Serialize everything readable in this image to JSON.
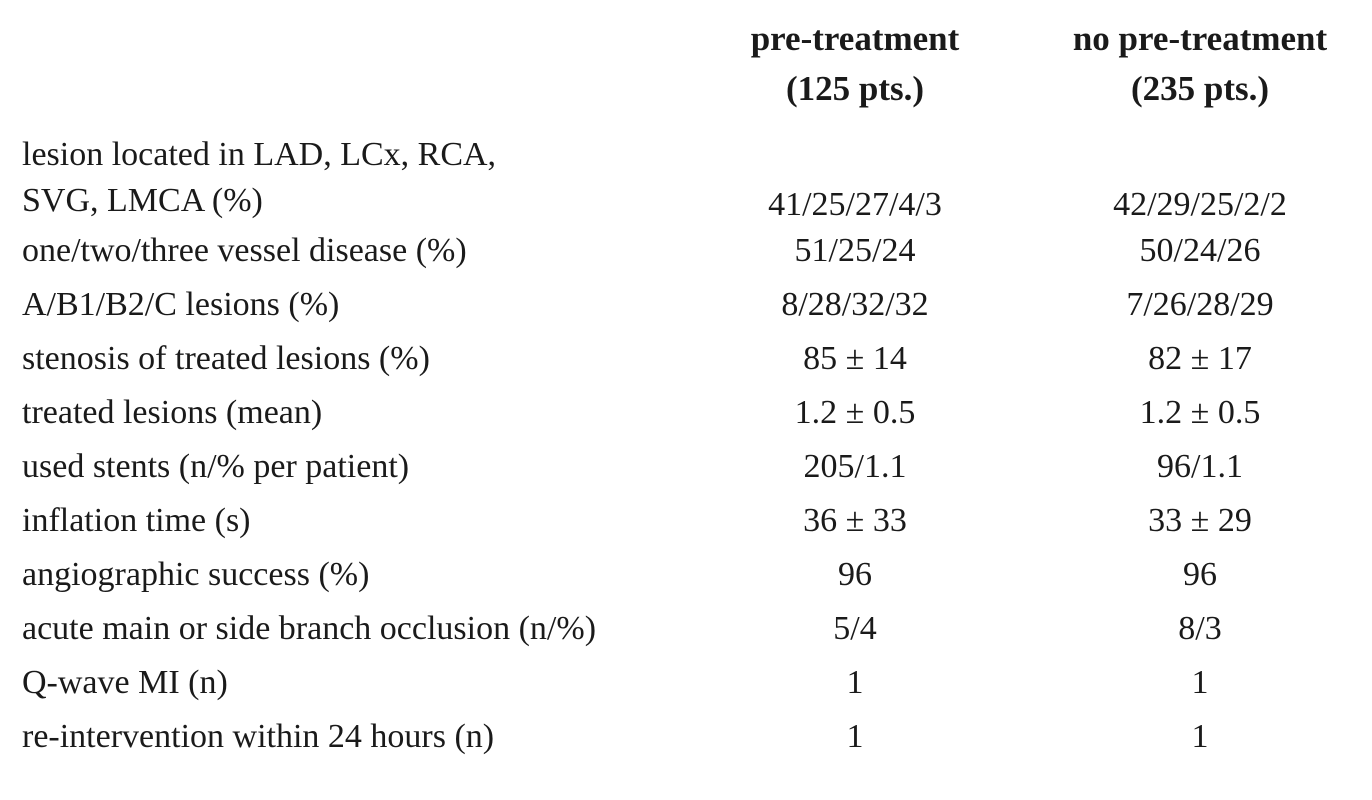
{
  "columns": [
    {
      "line1": "pre-treatment",
      "line2": "(125 pts.)"
    },
    {
      "line1": "no pre-treatment",
      "line2": "(235 pts.)"
    }
  ],
  "rows": [
    {
      "label_line1": "lesion located in LAD, LCx, RCA,",
      "label_line2": "SVG, LMCA (%)",
      "pre": "41/25/27/4/3",
      "no_pre": "42/29/25/2/2"
    },
    {
      "label": "one/two/three vessel disease (%)",
      "pre": "51/25/24",
      "no_pre": "50/24/26"
    },
    {
      "label": "A/B1/B2/C lesions (%)",
      "pre": "8/28/32/32",
      "no_pre": "7/26/28/29"
    },
    {
      "label": "stenosis of treated lesions (%)",
      "pre": "85 ± 14",
      "no_pre": "82 ± 17"
    },
    {
      "label": "treated lesions (mean)",
      "pre": "1.2 ± 0.5",
      "no_pre": "1.2 ± 0.5"
    },
    {
      "label": "used stents (n/% per patient)",
      "pre": "205/1.1",
      "no_pre": "96/1.1"
    },
    {
      "label": "inflation time (s)",
      "pre": "36 ± 33",
      "no_pre": "33 ± 29"
    },
    {
      "label": "angiographic success (%)",
      "pre": "96",
      "no_pre": "96"
    },
    {
      "label": "acute main or side branch occlusion (n/%)",
      "pre": "5/4",
      "no_pre": "8/3"
    },
    {
      "label": "Q-wave MI (n)",
      "pre": "1",
      "no_pre": "1"
    },
    {
      "label": "re-intervention within 24 hours (n)",
      "pre": "1",
      "no_pre": "1"
    }
  ]
}
